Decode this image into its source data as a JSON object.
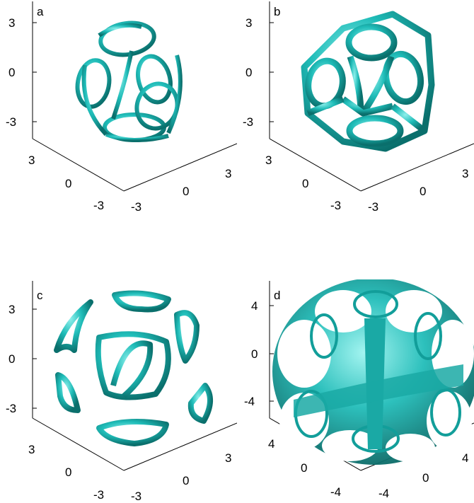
{
  "colors": {
    "surface": "#19b3b0",
    "surface_light": "#7de8e4",
    "surface_dark": "#0a6f6c",
    "axis": "#000000"
  },
  "panels": [
    {
      "id": "a",
      "label": "a",
      "z_ticks": [
        "3",
        "0",
        "-3"
      ],
      "x_ticks": [
        "3",
        "0",
        "-3"
      ],
      "y_ticks": [
        "-3",
        "0",
        "3"
      ]
    },
    {
      "id": "b",
      "label": "b",
      "z_ticks": [
        "3",
        "0",
        "-3"
      ],
      "x_ticks": [
        "3",
        "0",
        "-3"
      ],
      "y_ticks": [
        "-3",
        "0",
        "3"
      ]
    },
    {
      "id": "c",
      "label": "c",
      "z_ticks": [
        "3",
        "0",
        "-3"
      ],
      "x_ticks": [
        "3",
        "0",
        "-3"
      ],
      "y_ticks": [
        "-3",
        "0",
        "3"
      ]
    },
    {
      "id": "d",
      "label": "d",
      "z_ticks": [
        "4",
        "0",
        "-4"
      ],
      "x_ticks": [
        "4",
        "0",
        "-4"
      ],
      "y_ticks": [
        "-4",
        "0",
        "4"
      ]
    }
  ]
}
